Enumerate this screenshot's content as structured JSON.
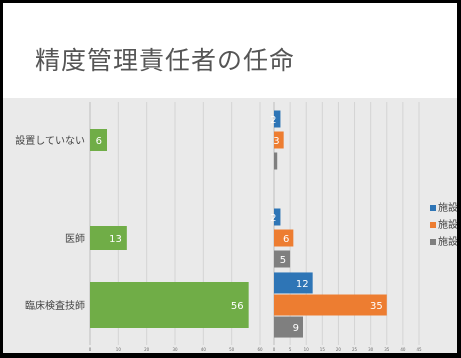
{
  "slide": {
    "title": "精度管理責任者の任命"
  },
  "chart_data": [
    {
      "type": "bar",
      "orientation": "horizontal",
      "categories": [
        "設置していない",
        "医師",
        "臨床検査技師"
      ],
      "series": [
        {
          "values": [
            6,
            13,
            56
          ],
          "color": "#70ad47"
        }
      ],
      "xlim": [
        0,
        60
      ],
      "x_ticks": [
        "0",
        "10",
        "20",
        "30",
        "40",
        "50",
        "60"
      ],
      "data_labels": true,
      "grid": true
    },
    {
      "type": "bar",
      "orientation": "horizontal",
      "categories": [
        "設置していない",
        "医師",
        "臨床検査技師"
      ],
      "series": [
        {
          "name": "施設A",
          "values": [
            2,
            2,
            12
          ],
          "color": "#2e75b6"
        },
        {
          "name": "施設B",
          "values": [
            3,
            6,
            35
          ],
          "color": "#ed7d31"
        },
        {
          "name": "施設C",
          "values": [
            1,
            5,
            9
          ],
          "color": "#7f7f7f"
        }
      ],
      "xlim": [
        0,
        45
      ],
      "x_ticks": [
        "0",
        "5",
        "10",
        "15",
        "20",
        "25",
        "30",
        "35",
        "40",
        "45"
      ],
      "data_labels": true,
      "grid": true,
      "legend": "right"
    }
  ]
}
